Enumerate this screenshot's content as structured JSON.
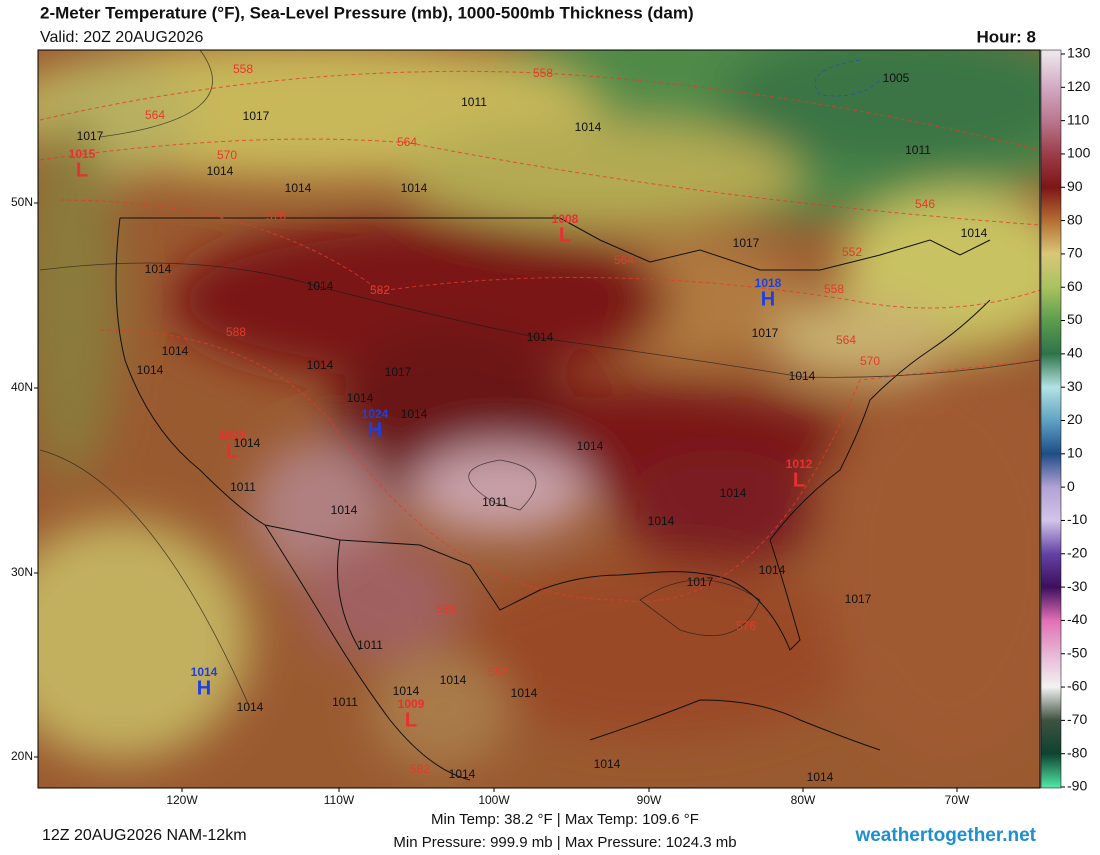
{
  "header": {
    "title": "2-Meter Temperature (°F), Sea-Level Pressure (mb), 1000-500mb Thickness (dam)",
    "valid": "Valid: 20Z 20AUG2026",
    "hour": "Hour: 8"
  },
  "map": {
    "lat_labels": [
      "50N",
      "40N",
      "30N",
      "20N"
    ],
    "lon_labels": [
      "120W",
      "110W",
      "100W",
      "90W",
      "80W",
      "70W"
    ],
    "centers": [
      {
        "letter": "L",
        "value": 1015
      },
      {
        "letter": "L",
        "value": 1008
      },
      {
        "letter": "H",
        "value": 1018
      },
      {
        "letter": "H",
        "value": 1024
      },
      {
        "letter": "L",
        "value": 1009
      },
      {
        "letter": "L",
        "value": 1012
      },
      {
        "letter": "H",
        "value": 1014
      },
      {
        "letter": "L",
        "value": 1009
      }
    ],
    "isobar_labels": [
      1011,
      1017,
      1014,
      1005,
      1011,
      1017,
      1014,
      1014,
      1014,
      1017,
      1014,
      1014,
      1014,
      1014,
      1017,
      1014,
      1014,
      1014,
      1017,
      1014,
      1014,
      1014,
      1014,
      1014,
      1011,
      1011,
      1014,
      1014,
      1014,
      1017,
      1014,
      1017,
      1011,
      1014,
      1014,
      1014,
      1011,
      1014,
      1014,
      1014,
      1014
    ],
    "thickness_labels": [
      558,
      558,
      564,
      564,
      570,
      576,
      582,
      588,
      546,
      552,
      558,
      564,
      570,
      564,
      588,
      582,
      582,
      576
    ]
  },
  "colorbar": {
    "ticks": [
      130,
      120,
      110,
      100,
      90,
      80,
      70,
      60,
      50,
      40,
      30,
      20,
      10,
      0,
      -10,
      -20,
      -30,
      -40,
      -50,
      -60,
      -70,
      -80,
      -90
    ],
    "colors": [
      "#ece4ea",
      "#d2aac2",
      "#b9788f",
      "#9c3d4a",
      "#7d1616",
      "#b46e34",
      "#d9c877",
      "#a9c25f",
      "#5d9c4f",
      "#2f7448",
      "#b3e2e2",
      "#5fa2c4",
      "#1f4d85",
      "#b0a2d4",
      "#d2c4ea",
      "#6442a4",
      "#3d0f5e",
      "#e070b4",
      "#e6b6d4",
      "#f2f2f2",
      "#3e5240",
      "#0f4230",
      "#4fe6a2"
    ]
  },
  "footer": {
    "run": "12Z 20AUG2026 NAM-12km",
    "stats_line1": "Min Temp:  38.2 °F | Max Temp: 109.6 °F",
    "stats_line2": "Min Pressure: 999.9 mb | Max Pressure: 1024.3 mb",
    "brand": "weathertogether.net"
  }
}
